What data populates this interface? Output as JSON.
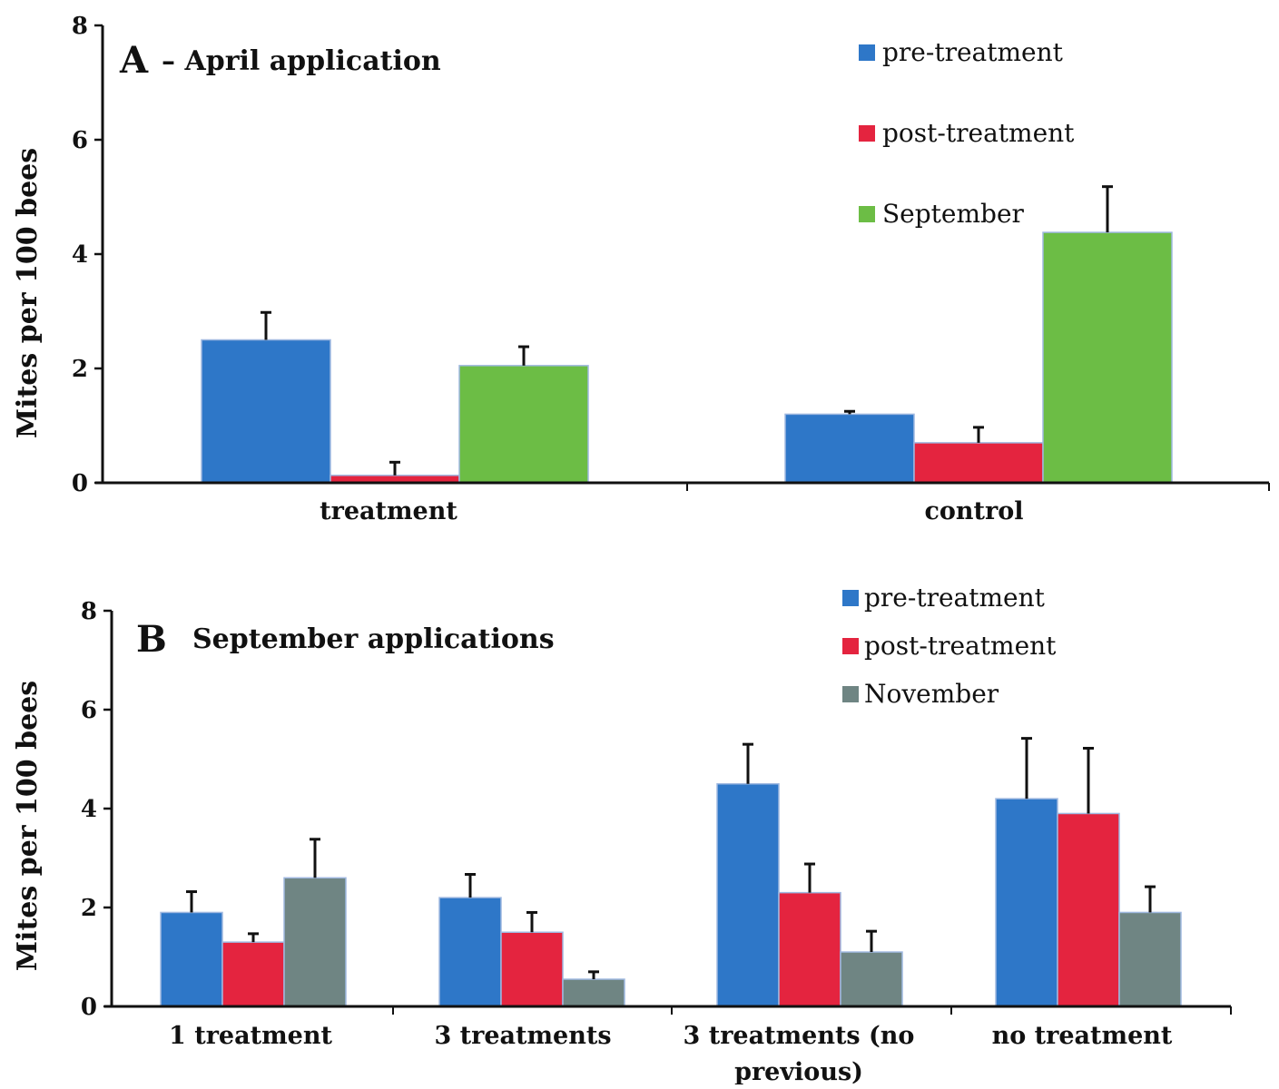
{
  "chart_data": [
    {
      "type": "bar",
      "panel_letter": "A",
      "title": "– April application",
      "ylabel": "Mites per 100 bees",
      "ylim": [
        0,
        8
      ],
      "yticks": [
        0,
        2,
        4,
        6,
        8
      ],
      "categories": [
        "treatment",
        "control"
      ],
      "series": [
        {
          "name": "pre-treatment",
          "color": "#2e77c8",
          "values": [
            2.5,
            1.2
          ],
          "errors": [
            0.48,
            0.05
          ]
        },
        {
          "name": "post-treatment",
          "color": "#e4243f",
          "values": [
            0.13,
            0.7
          ],
          "errors": [
            0.23,
            0.27
          ]
        },
        {
          "name": "September",
          "color": "#6cbd45",
          "values": [
            2.05,
            4.38
          ],
          "errors": [
            0.33,
            0.8
          ]
        }
      ],
      "legend_position": "top-right"
    },
    {
      "type": "bar",
      "panel_letter": "B",
      "title": "September applications",
      "ylabel": "Mites per 100 bees",
      "ylim": [
        0,
        8
      ],
      "yticks": [
        0,
        2,
        4,
        6,
        8
      ],
      "categories": [
        "1 treatment",
        "3 treatments",
        "3 treatments (no previous)",
        "no treatment"
      ],
      "series": [
        {
          "name": "pre-treatment",
          "color": "#2e77c8",
          "values": [
            1.9,
            2.2,
            4.5,
            4.2
          ],
          "errors": [
            0.42,
            0.47,
            0.8,
            1.22
          ]
        },
        {
          "name": "post-treatment",
          "color": "#e4243f",
          "values": [
            1.3,
            1.5,
            2.3,
            3.9
          ],
          "errors": [
            0.17,
            0.4,
            0.58,
            1.32
          ]
        },
        {
          "name": "November",
          "color": "#6f8583",
          "values": [
            2.6,
            0.55,
            1.1,
            1.9
          ],
          "errors": [
            0.78,
            0.15,
            0.42,
            0.52
          ]
        }
      ],
      "legend_position": "top-right"
    }
  ]
}
